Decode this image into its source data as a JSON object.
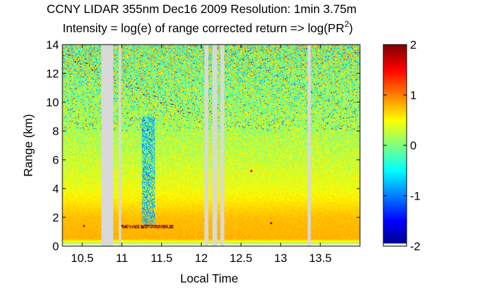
{
  "chart_data": {
    "type": "heatmap",
    "title": "CCNY LIDAR 355nm Dec16 2009 Resolution: 1min 3.75m",
    "subtitle_main": "Intensity = log(e) of range corrected return => log(PR",
    "subtitle_sup": "2",
    "subtitle_end": ")",
    "xlabel": "Local Time",
    "ylabel": "Range (km)",
    "xlim": [
      10.25,
      14.0
    ],
    "ylim": [
      0,
      14
    ],
    "xticks": [
      10.5,
      11,
      11.5,
      12,
      12.5,
      13,
      13.5
    ],
    "xtick_labels": [
      "10.5",
      "11",
      "11.5",
      "12",
      "12.5",
      "13",
      "13.5"
    ],
    "yticks": [
      0,
      2,
      4,
      6,
      8,
      10,
      12,
      14
    ],
    "ytick_labels": [
      "0",
      "2",
      "4",
      "6",
      "8",
      "10",
      "12",
      "14"
    ],
    "colorbar": {
      "range": [
        -2,
        2
      ],
      "ticks": [
        -2,
        -1,
        0,
        1,
        2
      ],
      "tick_labels": [
        "-2",
        "-1",
        "0",
        "1",
        "2"
      ],
      "colormap": "jet"
    },
    "data_gaps": [
      [
        10.74,
        10.89
      ],
      [
        10.96,
        10.99
      ],
      [
        12.04,
        12.09
      ],
      [
        12.14,
        12.2
      ],
      [
        12.24,
        12.29
      ],
      [
        13.34,
        13.38
      ]
    ],
    "features": [
      {
        "label": "cloud base layer",
        "time_range": [
          10.98,
          11.65
        ],
        "range_km": 1.35,
        "value": 2.0
      },
      {
        "label": "aerosol feature",
        "time_range": [
          11.25,
          11.42
        ],
        "range_km": [
          1.5,
          9.0
        ],
        "value": -0.8
      },
      {
        "label": "small cloud",
        "time": 12.88,
        "range_km": 1.6,
        "value": 1.8
      },
      {
        "label": "small cloud",
        "time": 12.63,
        "range_km": 5.2,
        "value": 1.5
      },
      {
        "label": "small cloud",
        "time": 10.52,
        "range_km": 1.4,
        "value": 1.5
      }
    ],
    "profile_mean": [
      {
        "range_km": 0.1,
        "value": 0.0
      },
      {
        "range_km": 0.5,
        "value": 0.8
      },
      {
        "range_km": 2.0,
        "value": 0.75
      },
      {
        "range_km": 4.0,
        "value": 0.45
      },
      {
        "range_km": 6.0,
        "value": 0.3
      },
      {
        "range_km": 8.0,
        "value": 0.2
      },
      {
        "range_km": 10.0,
        "value": 0.15
      },
      {
        "range_km": 12.0,
        "value": 0.15
      },
      {
        "range_km": 14.0,
        "value": 0.15
      }
    ],
    "grid": false,
    "gap_color": "#d9d9d9",
    "below_scale_color": "#f0f0f0"
  }
}
